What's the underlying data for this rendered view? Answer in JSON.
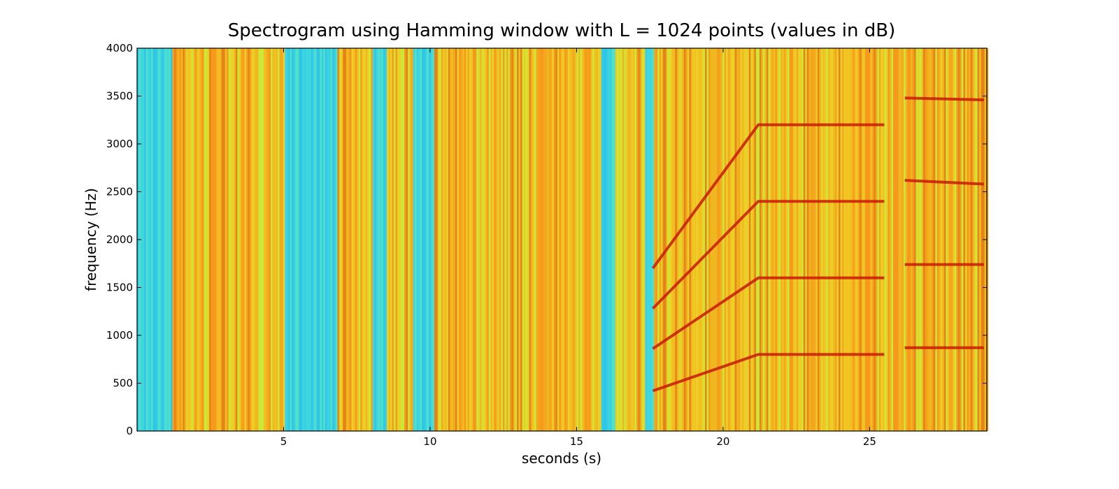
{
  "chart_data": {
    "type": "heatmap",
    "title": "Spectrogram using Hamming window with L = 1024 points (values in dB)",
    "xlabel": "seconds (s)",
    "ylabel": "frequency (Hz)",
    "xlim": [
      0,
      29
    ],
    "ylim": [
      0,
      4000
    ],
    "xticks": [
      5,
      10,
      15,
      20,
      25
    ],
    "yticks": [
      0,
      500,
      1000,
      1500,
      2000,
      2500,
      3000,
      3500,
      4000
    ],
    "colormap": "jet",
    "quiet_segments": [
      [
        0,
        1.2
      ],
      [
        5.0,
        6.8
      ],
      [
        8.0,
        8.5
      ],
      [
        9.4,
        10.1
      ],
      [
        15.8,
        16.3
      ],
      [
        17.3,
        17.6
      ]
    ],
    "harmonic_tracks": [
      {
        "points": [
          [
            17.6,
            420
          ],
          [
            21.2,
            800
          ],
          [
            25.5,
            800
          ]
        ]
      },
      {
        "points": [
          [
            17.6,
            860
          ],
          [
            21.2,
            1600
          ],
          [
            25.5,
            1600
          ]
        ]
      },
      {
        "points": [
          [
            17.6,
            1280
          ],
          [
            21.2,
            2400
          ],
          [
            25.5,
            2400
          ]
        ]
      },
      {
        "points": [
          [
            17.6,
            1700
          ],
          [
            21.2,
            3200
          ],
          [
            25.5,
            3200
          ]
        ]
      },
      {
        "points": [
          [
            26.2,
            870
          ],
          [
            28.9,
            870
          ]
        ]
      },
      {
        "points": [
          [
            26.2,
            1740
          ],
          [
            28.9,
            1740
          ]
        ]
      },
      {
        "points": [
          [
            26.2,
            2620
          ],
          [
            28.9,
            2580
          ]
        ]
      },
      {
        "points": [
          [
            26.2,
            3480
          ],
          [
            28.9,
            3460
          ]
        ]
      }
    ],
    "colors": {
      "background": "#ffffff",
      "axis": "#000000"
    }
  }
}
